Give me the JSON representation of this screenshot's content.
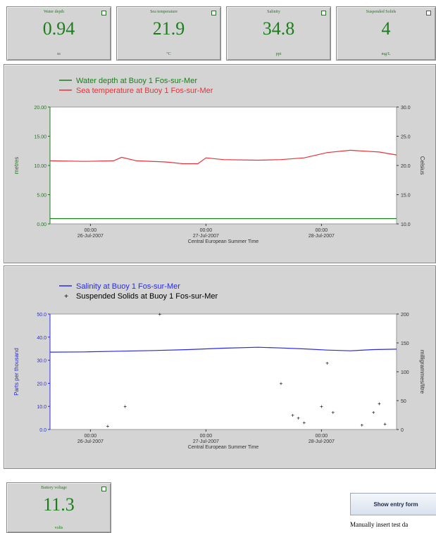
{
  "tiles": [
    {
      "label": "Water depth",
      "value": "0.94",
      "unit": "m"
    },
    {
      "label": "Sea temperature",
      "value": "21.9",
      "unit": "°C"
    },
    {
      "label": "Salinity",
      "value": "34.8",
      "unit": "ppt"
    },
    {
      "label": "Suspended Solids",
      "value": "4",
      "unit": "mg/L"
    }
  ],
  "battery": {
    "label": "Battery voltage",
    "value": "11.3",
    "unit": "volts"
  },
  "entry": {
    "button": "Show entry form",
    "note": "Manually insert test da"
  },
  "colors": {
    "green": "#1c7d1c",
    "red": "#e8323a",
    "blue": "#2a2ae6",
    "black": "#000000",
    "panel": "#d4d4d4"
  },
  "chart_data": [
    {
      "type": "line",
      "xlabel": "Central European Summer Time",
      "x_ticks": [
        {
          "time": "00:00",
          "date": "26-Jul-2007"
        },
        {
          "time": "00:00",
          "date": "27-Jul-2007"
        },
        {
          "time": "00:00",
          "date": "28-Jul-2007"
        }
      ],
      "left_axis": {
        "label": "metres",
        "range": [
          0,
          20
        ],
        "ticks": [
          "0.00",
          "5.00",
          "10.00",
          "15.00",
          "20.00"
        ]
      },
      "right_axis": {
        "label": "Celsius",
        "range": [
          10,
          30
        ],
        "ticks": [
          "10.0",
          "15.0",
          "20.0",
          "25.0",
          "30.0"
        ]
      },
      "series": [
        {
          "name": "Water depth at Buoy 1 Fos-sur-Mer",
          "axis": "left",
          "x": [
            0,
            0.3,
            0.6,
            0.9,
            1.2,
            1.5,
            1.8,
            2.1,
            2.4,
            2.7,
            3.0
          ],
          "y": [
            0.9,
            0.9,
            0.9,
            0.9,
            0.9,
            0.9,
            0.9,
            0.9,
            0.9,
            0.9,
            0.9
          ]
        },
        {
          "name": "Sea temperature at Buoy 1 Fos-sur-Mer",
          "axis": "right",
          "x": [
            0,
            0.3,
            0.55,
            0.62,
            0.75,
            1.0,
            1.15,
            1.28,
            1.35,
            1.5,
            1.8,
            2.0,
            2.2,
            2.4,
            2.6,
            2.85,
            3.0
          ],
          "y": [
            20.8,
            20.7,
            20.8,
            21.4,
            20.8,
            20.6,
            20.3,
            20.3,
            21.3,
            21.0,
            20.9,
            21.0,
            21.3,
            22.2,
            22.6,
            22.3,
            21.8
          ]
        }
      ]
    },
    {
      "type": "line",
      "xlabel": "Central European Summer Time",
      "x_ticks": [
        {
          "time": "00:00",
          "date": "26-Jul-2007"
        },
        {
          "time": "00:00",
          "date": "27-Jul-2007"
        },
        {
          "time": "00:00",
          "date": "28-Jul-2007"
        }
      ],
      "left_axis": {
        "label": "Parts per thousand",
        "range": [
          0,
          50
        ],
        "ticks": [
          "0.0",
          "10.0",
          "20.0",
          "30.0",
          "40.0",
          "50.0"
        ]
      },
      "right_axis": {
        "label": "milligrammes/litre",
        "range": [
          0,
          200
        ],
        "ticks": [
          "0",
          "50",
          "100",
          "150",
          "200"
        ]
      },
      "series": [
        {
          "name": "Salinity at Buoy 1 Fos-sur-Mer",
          "axis": "left",
          "x": [
            0,
            0.3,
            0.6,
            0.9,
            1.2,
            1.5,
            1.8,
            2.0,
            2.2,
            2.4,
            2.6,
            2.8,
            3.0
          ],
          "y": [
            33.5,
            33.6,
            33.9,
            34.2,
            34.6,
            35.2,
            35.6,
            35.3,
            34.9,
            34.4,
            34.1,
            34.6,
            34.8
          ]
        },
        {
          "name": "Suspended Solids at Buoy 1 Fos-sur-Mer",
          "axis": "right",
          "marker": "+",
          "x": [
            0.5,
            0.65,
            0.95,
            2.0,
            2.1,
            2.15,
            2.2,
            2.35,
            2.4,
            2.45,
            2.7,
            2.8,
            2.85,
            2.9
          ],
          "y": [
            6,
            40,
            200,
            80,
            25,
            20,
            12,
            40,
            115,
            30,
            8,
            30,
            45,
            10
          ]
        }
      ]
    }
  ]
}
